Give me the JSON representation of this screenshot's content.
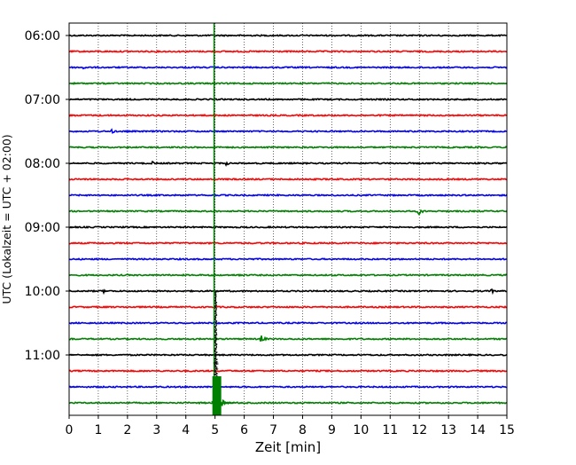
{
  "chart_data": {
    "type": "line",
    "title": "",
    "xlabel": "Zeit  [min]",
    "ylabel": "UTC (Lokalzeit = UTC + 02:00)",
    "xlim": [
      0,
      15
    ],
    "x_ticks": [
      0,
      1,
      2,
      3,
      4,
      5,
      6,
      7,
      8,
      9,
      10,
      11,
      12,
      13,
      14,
      15
    ],
    "x_tick_labels": [
      "0",
      "1",
      "2",
      "3",
      "4",
      "5",
      "6",
      "7",
      "8",
      "9",
      "10",
      "11",
      "12",
      "13",
      "14",
      "15"
    ],
    "y_tick_labels": [
      "06:00",
      "07:00",
      "08:00",
      "09:00",
      "10:00",
      "11:00"
    ],
    "traces_per_hour": 4,
    "minutes_per_trace": 15,
    "first_trace_time": "06:00",
    "trace_count": 24,
    "trace_colors": [
      "#000000",
      "#ff0000",
      "#0000ff",
      "#008000"
    ],
    "grid": {
      "x": true,
      "y": false,
      "style": "dotted"
    },
    "events": [
      {
        "trace": 2,
        "minute": 0.5,
        "amplitude": "small"
      },
      {
        "trace": 6,
        "minute": 1.5,
        "amplitude": "small"
      },
      {
        "trace": 8,
        "minute": 2.9,
        "amplitude": "small"
      },
      {
        "trace": 8,
        "minute": 5.4,
        "amplitude": "small"
      },
      {
        "trace": 11,
        "minute": 12.0,
        "amplitude": "medium"
      },
      {
        "trace": 15,
        "minute": 5.8,
        "amplitude": "small"
      },
      {
        "trace": 16,
        "minute": 1.2,
        "amplitude": "small"
      },
      {
        "trace": 16,
        "minute": 14.5,
        "amplitude": "small"
      },
      {
        "trace": 19,
        "minute": 6.6,
        "amplitude": "medium"
      },
      {
        "trace": 23,
        "minute": 5.0,
        "amplitude": "large",
        "note": "main earthquake arrival"
      }
    ],
    "main_event": {
      "time": "11:45",
      "minute": 5.0,
      "color": "#008000"
    }
  }
}
